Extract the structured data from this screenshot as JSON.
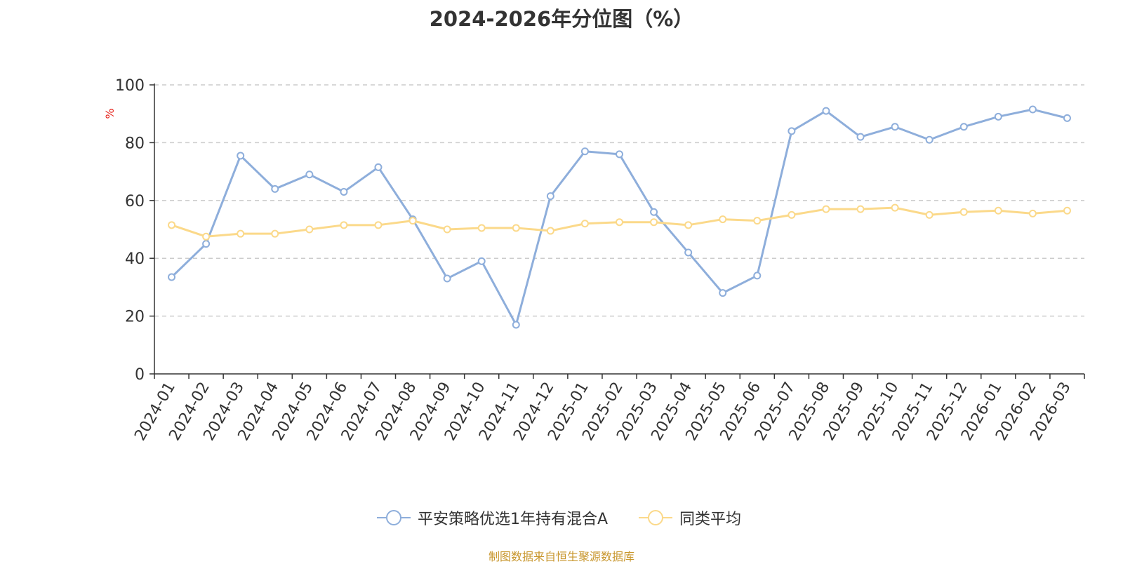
{
  "chart_data": {
    "type": "line",
    "title": "2024-2026年分位图（%）",
    "ylabel": "%",
    "xlabel": "",
    "ylim": [
      0,
      100
    ],
    "yticks": [
      0,
      20,
      40,
      60,
      80,
      100
    ],
    "grid": true,
    "legend_position": "bottom",
    "categories": [
      "2024-01",
      "2024-02",
      "2024-03",
      "2024-04",
      "2024-05",
      "2024-06",
      "2024-07",
      "2024-08",
      "2024-09",
      "2024-10",
      "2024-11",
      "2024-12",
      "2025-01",
      "2025-02",
      "2025-03",
      "2025-04",
      "2025-05",
      "2025-06",
      "2025-07",
      "2025-08",
      "2025-09",
      "2025-10",
      "2025-11",
      "2025-12",
      "2026-01",
      "2026-02",
      "2026-03"
    ],
    "series": [
      {
        "name": "平安策略优选1年持有混合A",
        "color": "#8eaedb",
        "values": [
          33.5,
          45,
          75.5,
          64,
          69,
          63,
          71.5,
          53.5,
          33,
          39,
          17,
          61.5,
          77,
          76,
          56,
          42,
          28,
          34,
          84,
          91,
          82,
          85.5,
          81,
          85.5,
          89,
          91.5,
          88.5
        ]
      },
      {
        "name": "同类平均",
        "color": "#fbd98a",
        "values": [
          51.5,
          47.5,
          48.5,
          48.5,
          50,
          51.5,
          51.5,
          53,
          50,
          50.5,
          50.5,
          49.5,
          52,
          52.5,
          52.5,
          51.5,
          53.5,
          53,
          55,
          57,
          57,
          57.5,
          55,
          56,
          56.5,
          55.5,
          56.5
        ]
      }
    ]
  },
  "source_note": "制图数据来自恒生聚源数据库"
}
